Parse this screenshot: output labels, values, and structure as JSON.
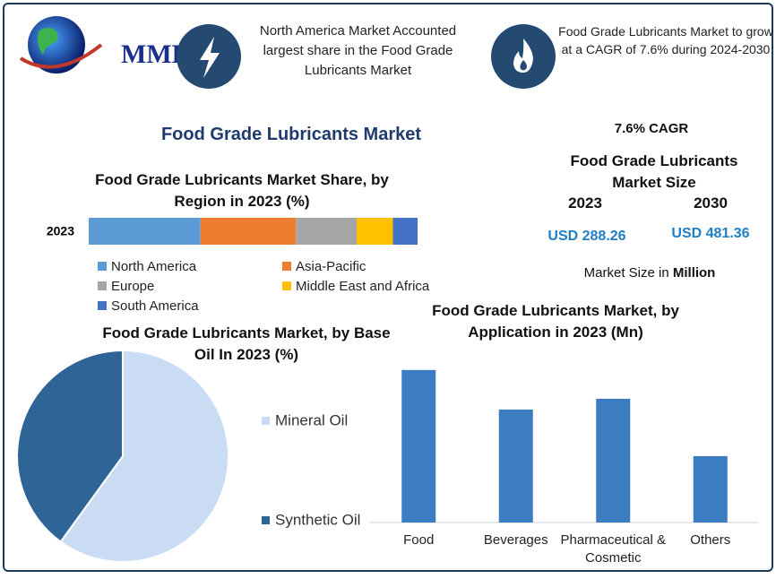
{
  "header": {
    "logo": "MMR",
    "callouts": [
      "North America Market Accounted largest share in the Food Grade Lubricants Market",
      "Food Grade Lubricants Market to grow at a CAGR of 7.6% during 2024-2030"
    ]
  },
  "main_title": "Food Grade Lubricants Market",
  "market_size": {
    "cagr": "7.6% CAGR",
    "title": "Food Grade Lubricants Market Size",
    "years": [
      "2023",
      "2030"
    ],
    "values": [
      "USD 288.26",
      "USD 481.36"
    ],
    "note": "Market Size in",
    "unit": "Million"
  },
  "chart_data": [
    {
      "type": "stacked-hbar",
      "title": "Food Grade Lubricants Market Share, by Region in 2023 (%)",
      "categories": [
        "2023"
      ],
      "xlim": [
        0,
        100
      ],
      "series": [
        {
          "name": "North America",
          "color": "#5b9bd5",
          "values": [
            34
          ]
        },
        {
          "name": "Asia-Pacific",
          "color": "#ed7d31",
          "values": [
            29
          ]
        },
        {
          "name": "Europe",
          "color": "#a5a5a5",
          "values": [
            18.5
          ]
        },
        {
          "name": "Middle East and Africa",
          "color": "#ffc000",
          "values": [
            11
          ]
        },
        {
          "name": "South America",
          "color": "#4472c4",
          "values": [
            7.5
          ]
        }
      ]
    },
    {
      "type": "pie",
      "title": "Food Grade Lubricants Market, by Base Oil In 2023 (%)",
      "categories": [
        "Mineral Oil",
        "Synthetic Oil"
      ],
      "values": [
        60,
        40
      ],
      "colors": [
        "#c9dcf3",
        "#2f6496"
      ]
    },
    {
      "type": "bar",
      "title": "Food Grade Lubricants Market, by Application in 2023 (Mn)",
      "categories": [
        "Food",
        "Beverages",
        "Pharmaceutical & Cosmetic",
        "Others"
      ],
      "values": [
        96.5,
        71.5,
        78.3,
        42
      ],
      "ylim": [
        0,
        110
      ],
      "color": "#3b7dc0"
    }
  ]
}
